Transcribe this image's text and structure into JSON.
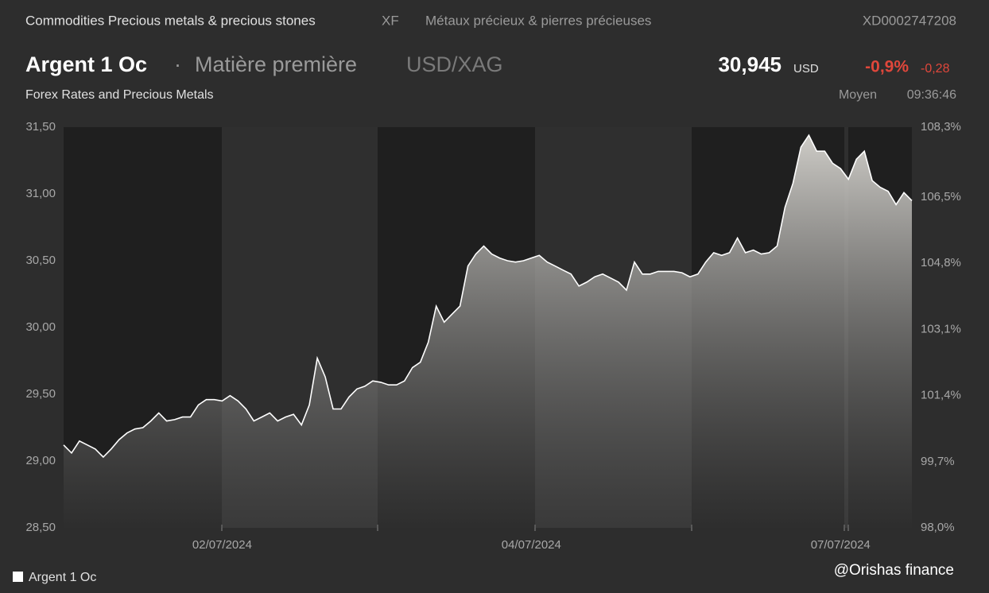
{
  "header": {
    "category": "Commodities Precious metals & precious stones",
    "exchange": "XF",
    "category_fr": "Métaux précieux & pierres précieuses",
    "isin": "XD0002747208",
    "name": "Argent 1 Oc",
    "separator": "·",
    "asset_type": "Matière première",
    "pair": "USD/XAG",
    "price": "30,945",
    "currency": "USD",
    "change_pct": "-0,9%",
    "change": "-0,28",
    "source": "Forex Rates and Precious Metals",
    "mode": "Moyen",
    "time": "09:36:46"
  },
  "watermark": "@Orishas finance",
  "chart_data": {
    "type": "area",
    "categories": [
      null,
      null,
      null,
      null,
      null,
      null,
      null,
      null,
      null,
      null,
      null,
      null,
      null,
      null,
      null,
      null,
      null,
      null,
      null,
      null,
      "02/07/2024",
      null,
      null,
      null,
      null,
      null,
      null,
      null,
      null,
      null,
      null,
      null,
      null,
      null,
      null,
      null,
      null,
      null,
      null,
      null,
      null,
      null,
      null,
      null,
      null,
      null,
      null,
      null,
      null,
      null,
      null,
      null,
      null,
      null,
      null,
      null,
      null,
      null,
      null,
      "04/07/2024",
      null,
      null,
      null,
      null,
      null,
      null,
      null,
      null,
      null,
      null,
      null,
      null,
      null,
      null,
      null,
      null,
      null,
      null,
      null,
      null,
      null,
      null,
      null,
      null,
      null,
      null,
      null,
      null,
      null,
      null,
      null,
      null,
      null,
      null,
      null,
      null,
      null,
      null,
      "07/07/2024",
      null,
      null,
      null,
      null,
      null,
      null,
      null,
      null,
      null
    ],
    "series": [
      {
        "name": "Argent 1 Oc",
        "color": "#ffffff",
        "values": [
          29.12,
          29.06,
          29.15,
          29.12,
          29.09,
          29.03,
          29.09,
          29.16,
          29.21,
          29.24,
          29.25,
          29.3,
          29.36,
          29.3,
          29.31,
          29.33,
          29.33,
          29.42,
          29.46,
          29.46,
          29.45,
          29.49,
          29.45,
          29.39,
          29.3,
          29.33,
          29.36,
          29.3,
          29.33,
          29.35,
          29.27,
          29.42,
          29.77,
          29.63,
          29.39,
          29.39,
          29.48,
          29.54,
          29.56,
          29.6,
          29.59,
          29.57,
          29.57,
          29.6,
          29.7,
          29.74,
          29.89,
          30.16,
          30.04,
          30.1,
          30.16,
          30.46,
          30.55,
          30.61,
          30.55,
          30.52,
          30.5,
          30.49,
          30.5,
          30.52,
          30.54,
          30.49,
          30.46,
          30.43,
          30.4,
          30.31,
          30.34,
          30.38,
          30.4,
          30.37,
          30.34,
          30.28,
          30.49,
          30.4,
          30.4,
          30.42,
          30.42,
          30.42,
          30.41,
          30.38,
          30.4,
          30.49,
          30.56,
          30.54,
          30.56,
          30.67,
          30.56,
          30.58,
          30.55,
          30.56,
          30.61,
          30.9,
          31.08,
          31.35,
          31.44,
          31.32,
          31.32,
          31.23,
          31.19,
          31.11,
          31.26,
          31.32,
          31.1,
          31.05,
          31.02,
          30.92,
          31.01,
          30.95
        ]
      }
    ],
    "ylim": [
      28.5,
      31.5
    ],
    "yticks": [
      {
        "value": 28.5,
        "label": "28,50"
      },
      {
        "value": 29,
        "label": "29,00"
      },
      {
        "value": 29.5,
        "label": "29,50"
      },
      {
        "value": 30,
        "label": "30,00"
      },
      {
        "value": 30.5,
        "label": "30,50"
      },
      {
        "value": 31,
        "label": "31,00"
      },
      {
        "value": 31.5,
        "label": "31,50"
      }
    ],
    "y2lim": [
      98.0,
      108.3
    ],
    "y2ticks": [
      {
        "value": 98.0,
        "label": "98,0%"
      },
      {
        "value": 99.7,
        "label": "99,7%"
      },
      {
        "value": 101.4,
        "label": "101,4%"
      },
      {
        "value": 103.1,
        "label": "103,1%"
      },
      {
        "value": 104.8,
        "label": "104,8%"
      },
      {
        "value": 106.5,
        "label": "106,5%"
      },
      {
        "value": 108.3,
        "label": "108,3%"
      }
    ],
    "legend": "bottom-left"
  }
}
